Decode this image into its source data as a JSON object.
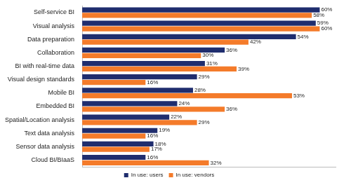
{
  "chart_data": {
    "type": "bar",
    "orientation": "horizontal",
    "categories": [
      "Self-service BI",
      "Visual analysis",
      "Data preparation",
      "Collaboration",
      "BI with real-time data",
      "Visual design standards",
      "Mobile BI",
      "Embedded BI",
      "Spatial/Location analysis",
      "Text data analysis",
      "Sensor data analysis",
      "Cloud BI/BIaaS"
    ],
    "series": [
      {
        "name": "In use: users",
        "color": "#1f2d6e",
        "values": [
          60,
          59,
          54,
          36,
          31,
          29,
          28,
          24,
          22,
          19,
          18,
          16
        ],
        "value_labels": [
          "60%",
          "59%",
          "54%",
          "36%",
          "31%",
          "29%",
          "28%",
          "24%",
          "22%",
          "19%",
          "18%",
          "16%"
        ]
      },
      {
        "name": "In use: vendors",
        "color": "#f47b2a",
        "values": [
          58,
          60,
          42,
          30,
          39,
          16,
          53,
          36,
          29,
          16,
          17,
          32
        ],
        "value_labels": [
          "58%",
          "60%",
          "42%",
          "30%",
          "39%",
          "16%",
          "53%",
          "36%",
          "29%",
          "16%",
          "17%",
          "32%"
        ]
      }
    ],
    "xlim": [
      0,
      64
    ],
    "grid": false,
    "legend": "bottom",
    "data_labels": true,
    "tick_labels": "y"
  }
}
